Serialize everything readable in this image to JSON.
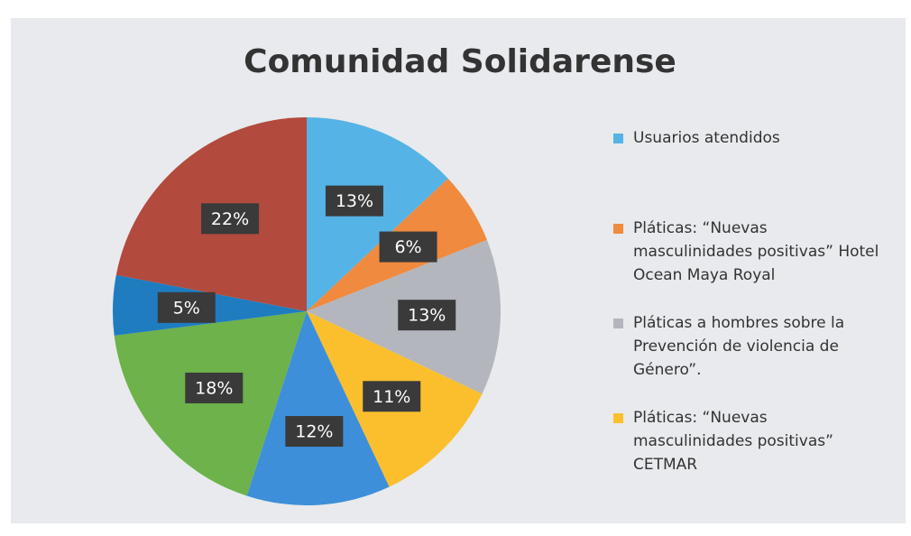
{
  "chart_data": {
    "type": "pie",
    "title": "Comunidad Solidarense",
    "categories": [
      "Usuarios atendidos",
      "Pláticas: “Nuevas masculinidades positivas” Hotel Ocean Maya Royal",
      "Pláticas a hombres sobre la Prevención de violencia de Género”.",
      "Pláticas: “Nuevas masculinidades positivas” CETMAR",
      null,
      null,
      null,
      null
    ],
    "values": [
      13,
      6,
      13,
      11,
      12,
      18,
      5,
      22
    ],
    "value_labels": [
      "13%",
      "6%",
      "13%",
      "11%",
      "12%",
      "18%",
      "5%",
      "22%"
    ],
    "colors": [
      "#55b3e6",
      "#f08a3e",
      "#b4b6bd",
      "#fbbf2e",
      "#3d8fd9",
      "#6db24a",
      "#1f7cbf",
      "#b24a3d"
    ]
  }
}
